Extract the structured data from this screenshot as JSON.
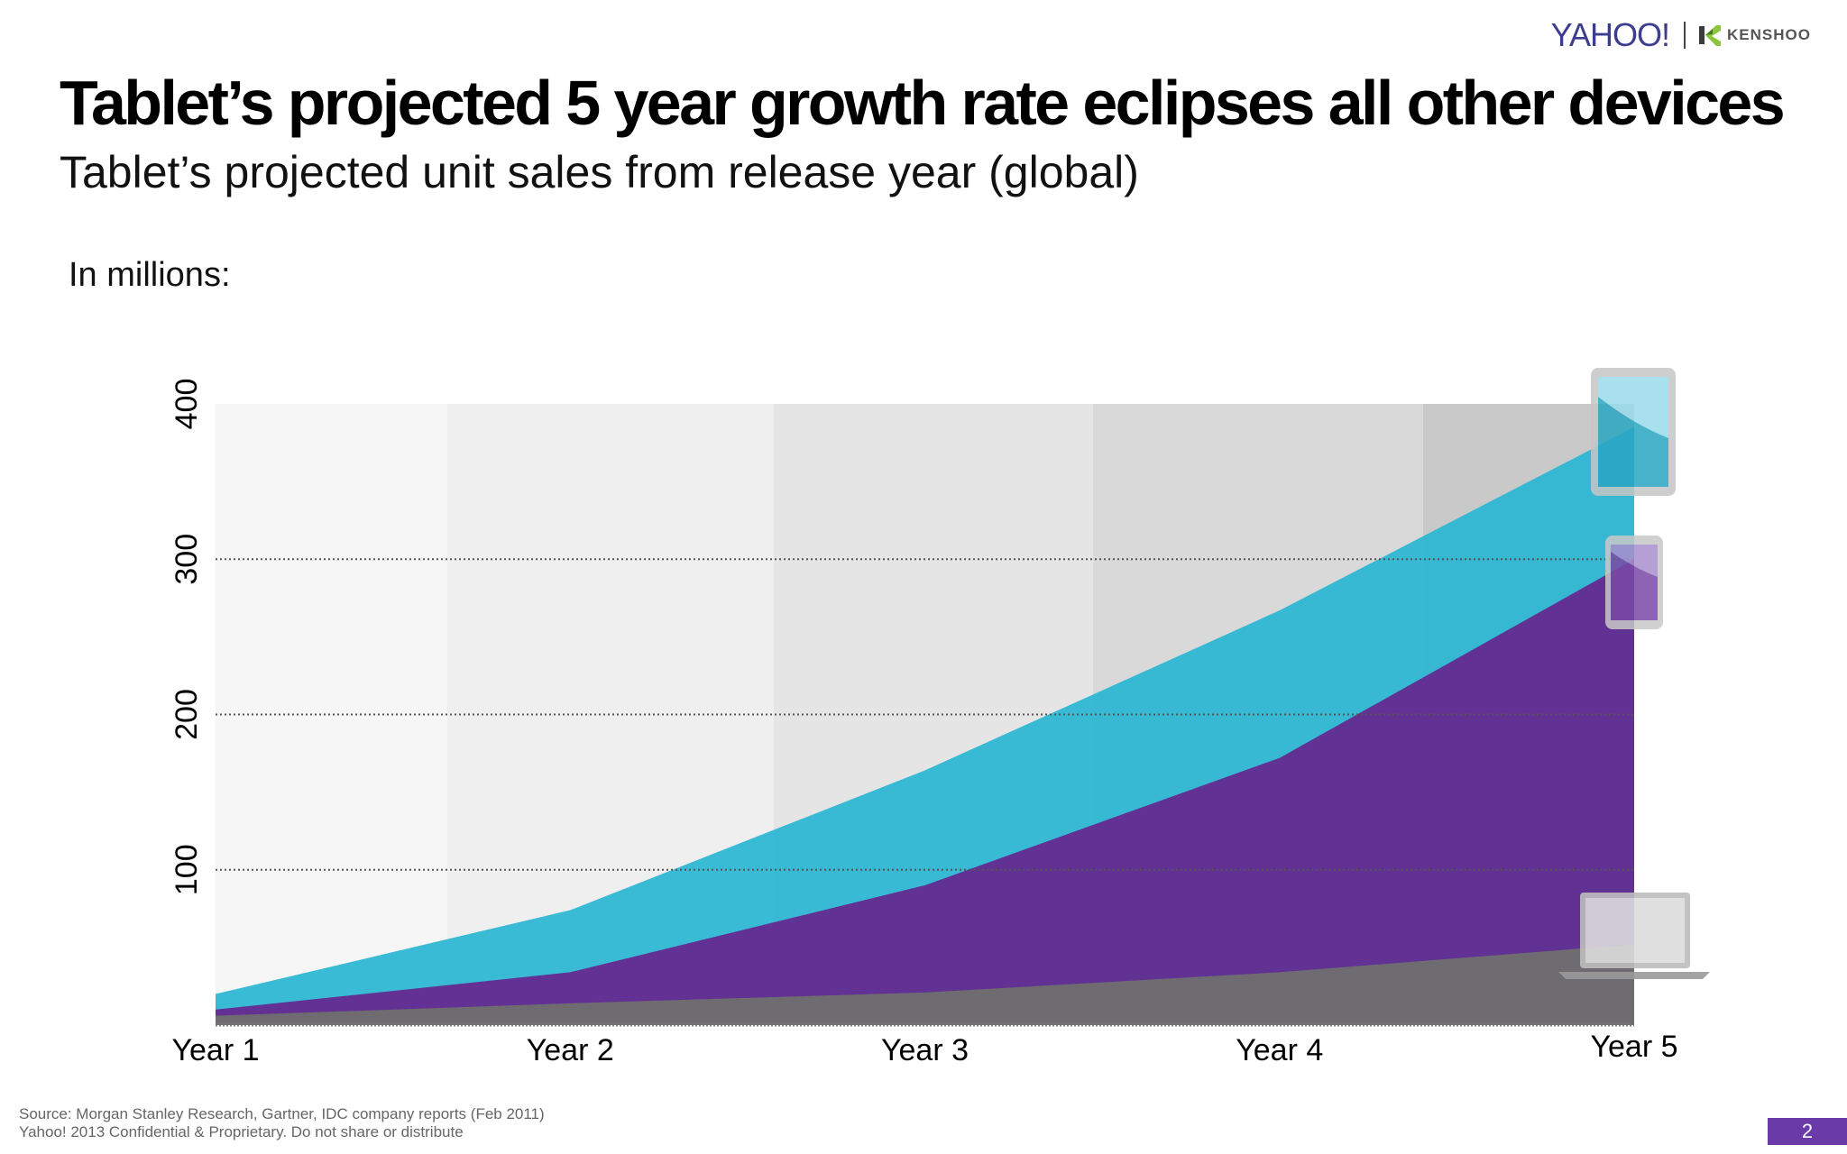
{
  "brand": {
    "yahoo": "YAHOO!",
    "kenshoo": "KENSHOO"
  },
  "header": {
    "title": "Tablet’s projected 5 year growth rate eclipses all other devices",
    "subtitle": "Tablet’s projected unit sales from release year (global)",
    "unit_note": "In millions:"
  },
  "chart_data": {
    "type": "area",
    "stacked": false,
    "categories": [
      "Year 1",
      "Year 2",
      "Year 3",
      "Year 4",
      "Year 5"
    ],
    "series": [
      {
        "values": [
          20,
          74,
          164,
          267,
          385
        ],
        "color": "#2eb6d3",
        "icon": "tablet-icon"
      },
      {
        "values": [
          10,
          34,
          90,
          172,
          300
        ],
        "color": "#642c92",
        "icon": "smartphone-icon"
      },
      {
        "values": [
          6,
          14,
          21,
          34,
          52
        ],
        "color": "#6e6e6e",
        "icon": "laptop-icon"
      }
    ],
    "y_ticks": [
      100,
      200,
      300,
      400
    ],
    "ylim": [
      0,
      400
    ],
    "grid": "horizontal dotted",
    "background_bands": [
      "#f6f6f6",
      "#efefef",
      "#e5e5e5",
      "#d9d9d9",
      "#c9c9c9"
    ]
  },
  "footer": {
    "source": "Source: Morgan Stanley Research, Gartner, IDC company reports (Feb 2011)",
    "confidential": "Yahoo! 2013  Confidential & Proprietary. Do not share or distribute"
  },
  "page_number": "2"
}
